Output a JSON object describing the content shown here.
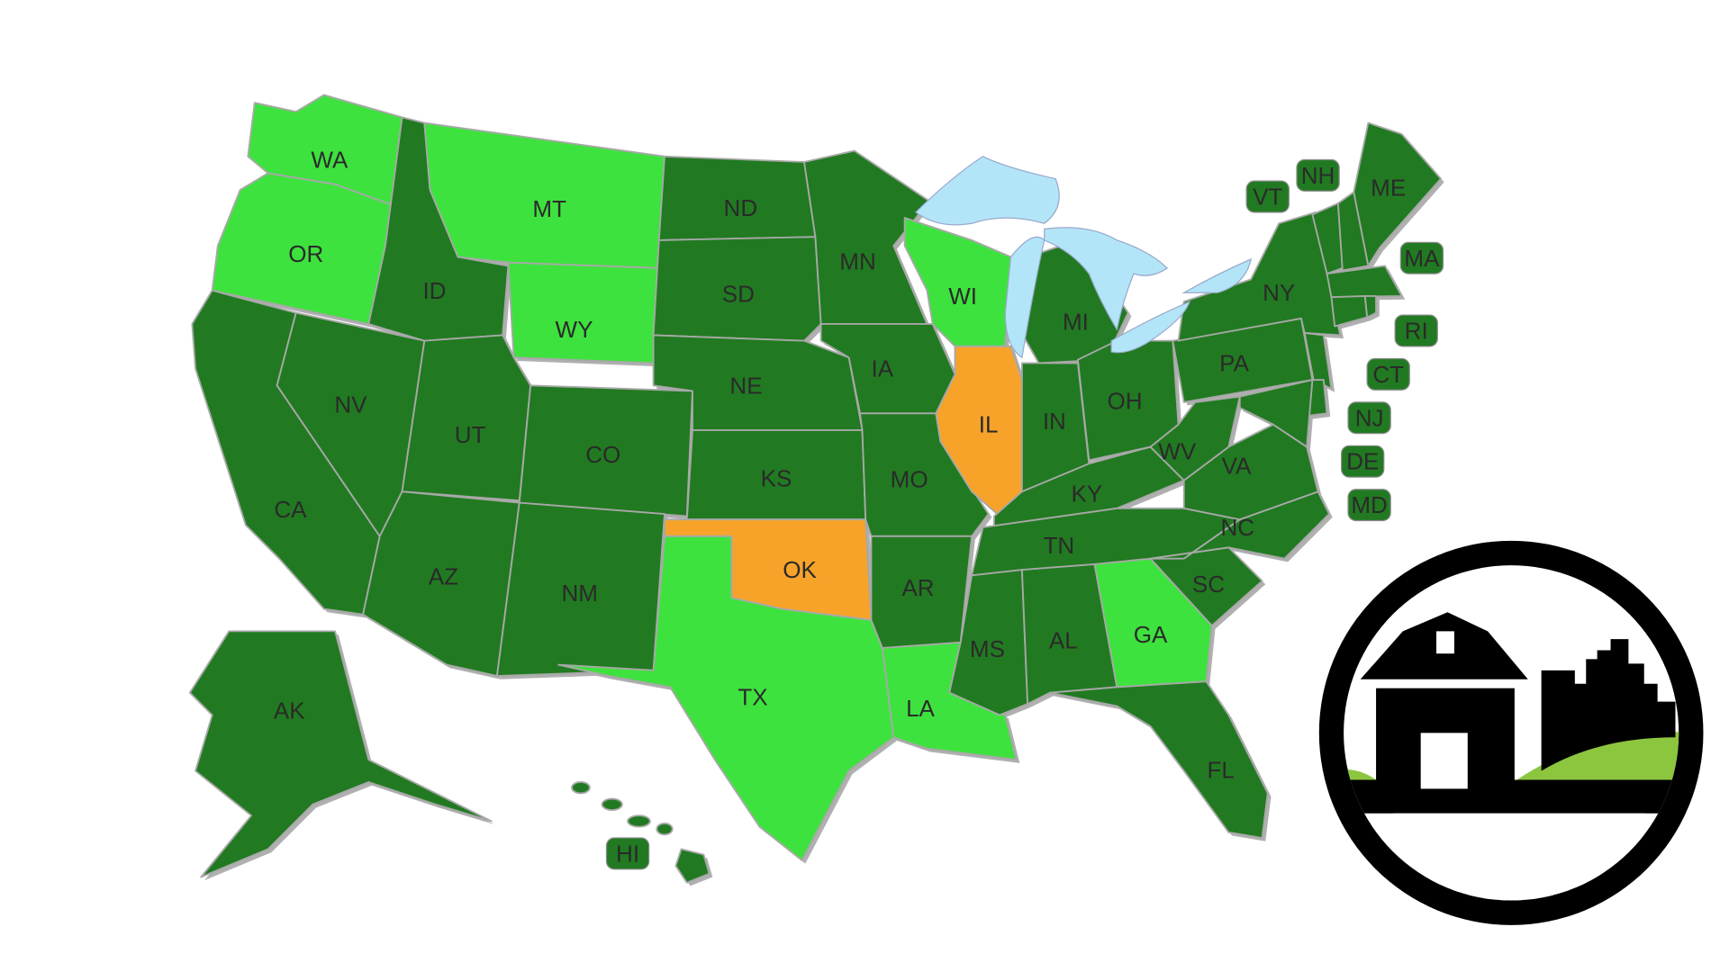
{
  "colors": {
    "dark": "#217a21",
    "light": "#3ee23e",
    "orange": "#f7a32a",
    "lake": "#b3e5f8",
    "logo_black": "#000000",
    "logo_green": "#8cc63f"
  },
  "states": [
    {
      "abbr": "WA",
      "status": "light"
    },
    {
      "abbr": "OR",
      "status": "light"
    },
    {
      "abbr": "CA",
      "status": "dark"
    },
    {
      "abbr": "NV",
      "status": "dark"
    },
    {
      "abbr": "ID",
      "status": "dark"
    },
    {
      "abbr": "MT",
      "status": "light"
    },
    {
      "abbr": "WY",
      "status": "light"
    },
    {
      "abbr": "UT",
      "status": "dark"
    },
    {
      "abbr": "CO",
      "status": "dark"
    },
    {
      "abbr": "AZ",
      "status": "dark"
    },
    {
      "abbr": "NM",
      "status": "dark"
    },
    {
      "abbr": "ND",
      "status": "dark"
    },
    {
      "abbr": "SD",
      "status": "dark"
    },
    {
      "abbr": "NE",
      "status": "dark"
    },
    {
      "abbr": "KS",
      "status": "dark"
    },
    {
      "abbr": "OK",
      "status": "orange"
    },
    {
      "abbr": "TX",
      "status": "light"
    },
    {
      "abbr": "MN",
      "status": "dark"
    },
    {
      "abbr": "IA",
      "status": "dark"
    },
    {
      "abbr": "MO",
      "status": "dark"
    },
    {
      "abbr": "AR",
      "status": "dark"
    },
    {
      "abbr": "LA",
      "status": "light"
    },
    {
      "abbr": "WI",
      "status": "light"
    },
    {
      "abbr": "IL",
      "status": "orange"
    },
    {
      "abbr": "MI",
      "status": "dark"
    },
    {
      "abbr": "IN",
      "status": "dark"
    },
    {
      "abbr": "OH",
      "status": "dark"
    },
    {
      "abbr": "KY",
      "status": "dark"
    },
    {
      "abbr": "TN",
      "status": "dark"
    },
    {
      "abbr": "MS",
      "status": "dark"
    },
    {
      "abbr": "AL",
      "status": "dark"
    },
    {
      "abbr": "GA",
      "status": "light"
    },
    {
      "abbr": "FL",
      "status": "dark"
    },
    {
      "abbr": "SC",
      "status": "dark"
    },
    {
      "abbr": "NC",
      "status": "dark"
    },
    {
      "abbr": "VA",
      "status": "dark"
    },
    {
      "abbr": "WV",
      "status": "dark"
    },
    {
      "abbr": "PA",
      "status": "dark"
    },
    {
      "abbr": "NY",
      "status": "dark"
    },
    {
      "abbr": "ME",
      "status": "dark"
    },
    {
      "abbr": "VT",
      "status": "dark"
    },
    {
      "abbr": "NH",
      "status": "dark"
    },
    {
      "abbr": "MA",
      "status": "dark"
    },
    {
      "abbr": "RI",
      "status": "dark"
    },
    {
      "abbr": "CT",
      "status": "dark"
    },
    {
      "abbr": "NJ",
      "status": "dark"
    },
    {
      "abbr": "DE",
      "status": "dark"
    },
    {
      "abbr": "MD",
      "status": "dark"
    },
    {
      "abbr": "AK",
      "status": "dark"
    },
    {
      "abbr": "HI",
      "status": "dark"
    }
  ]
}
